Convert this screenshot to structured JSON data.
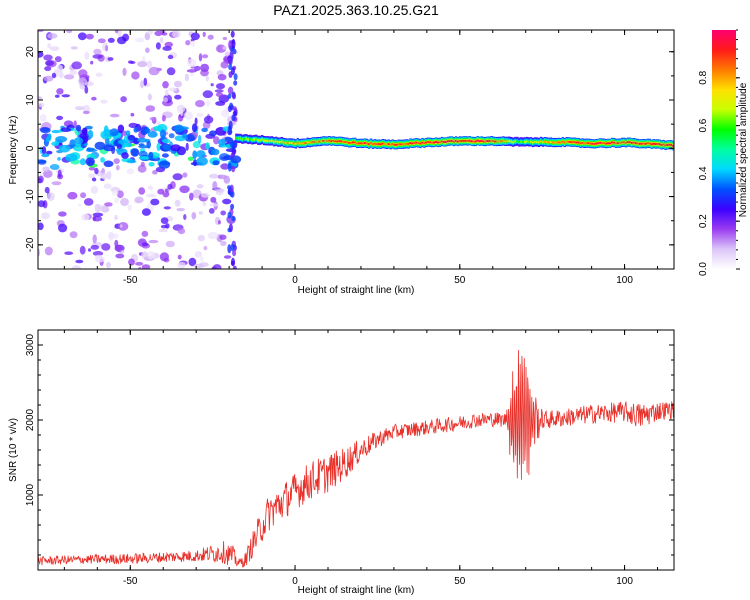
{
  "title": "PAZ1.2025.363.10.25.G21",
  "chart_data": [
    {
      "type": "heatmap",
      "name": "spectrogram",
      "xlabel": "Height of straight line (km)",
      "ylabel": "Frequency (Hz)",
      "xlim": [
        -78,
        115
      ],
      "ylim": [
        -25,
        24.5
      ],
      "xticks": [
        -50,
        0,
        50,
        100
      ],
      "yticks": [
        -20,
        -10,
        0,
        10,
        20
      ],
      "colorbar": {
        "label": "Normalized spectral amplitude",
        "range": [
          0,
          1
        ],
        "ticks": [
          "0.0",
          "0.2",
          "0.4",
          "0.6",
          "0.8"
        ],
        "colors": [
          "#ffffff",
          "#dcc6f8",
          "#9a3cf0",
          "#3b00ff",
          "#0050ff",
          "#00d8ff",
          "#00ffa0",
          "#00ff00",
          "#c8ff00",
          "#ffe000",
          "#ff7a00",
          "#ff1a1a",
          "#ff0070"
        ]
      },
      "noise_region_x": [
        -78,
        -18
      ],
      "signal_track": [
        {
          "x": -18,
          "freq": 2.0,
          "amp": 0.55
        },
        {
          "x": -10,
          "freq": 1.7,
          "amp": 0.6
        },
        {
          "x": 0,
          "freq": 1.0,
          "amp": 0.75
        },
        {
          "x": 10,
          "freq": 1.6,
          "amp": 0.8
        },
        {
          "x": 20,
          "freq": 1.0,
          "amp": 0.85
        },
        {
          "x": 30,
          "freq": 0.8,
          "amp": 0.8
        },
        {
          "x": 40,
          "freq": 1.2,
          "amp": 0.85
        },
        {
          "x": 50,
          "freq": 1.5,
          "amp": 0.9
        },
        {
          "x": 60,
          "freq": 1.5,
          "amp": 0.85
        },
        {
          "x": 68,
          "freq": 1.3,
          "amp": 0.55
        },
        {
          "x": 80,
          "freq": 1.3,
          "amp": 0.8
        },
        {
          "x": 90,
          "freq": 1.0,
          "amp": 0.85
        },
        {
          "x": 100,
          "freq": 1.2,
          "amp": 0.85
        },
        {
          "x": 115,
          "freq": 0.6,
          "amp": 0.9
        }
      ]
    },
    {
      "type": "line",
      "name": "snr",
      "xlabel": "Height of straight line (km)",
      "ylabel": "SNR (10 * v/v)",
      "xlim": [
        -78,
        115
      ],
      "ylim": [
        0,
        3200
      ],
      "xticks": [
        -50,
        0,
        50,
        100
      ],
      "yticks": [
        1000,
        2000,
        3000
      ],
      "color": "#e8302a",
      "x": [
        -78,
        -65,
        -50,
        -40,
        -30,
        -22,
        -19,
        -17,
        -15,
        -12,
        -8,
        -4,
        0,
        5,
        10,
        15,
        20,
        25,
        30,
        40,
        50,
        55,
        60,
        64,
        66,
        68,
        70,
        72,
        75,
        80,
        90,
        100,
        105,
        110,
        115
      ],
      "y": [
        120,
        140,
        150,
        170,
        190,
        240,
        190,
        90,
        140,
        420,
        760,
        900,
        1050,
        1200,
        1290,
        1420,
        1600,
        1740,
        1840,
        1900,
        1960,
        2000,
        2010,
        2000,
        1950,
        2050,
        2150,
        2000,
        2000,
        2020,
        2080,
        2110,
        2050,
        2120,
        2140
      ],
      "noise_amplitude": [
        60,
        60,
        70,
        70,
        80,
        150,
        150,
        60,
        100,
        200,
        250,
        250,
        250,
        260,
        260,
        220,
        150,
        120,
        100,
        100,
        100,
        100,
        100,
        100,
        900,
        1400,
        1300,
        500,
        130,
        120,
        130,
        140,
        180,
        130,
        120
      ]
    }
  ]
}
